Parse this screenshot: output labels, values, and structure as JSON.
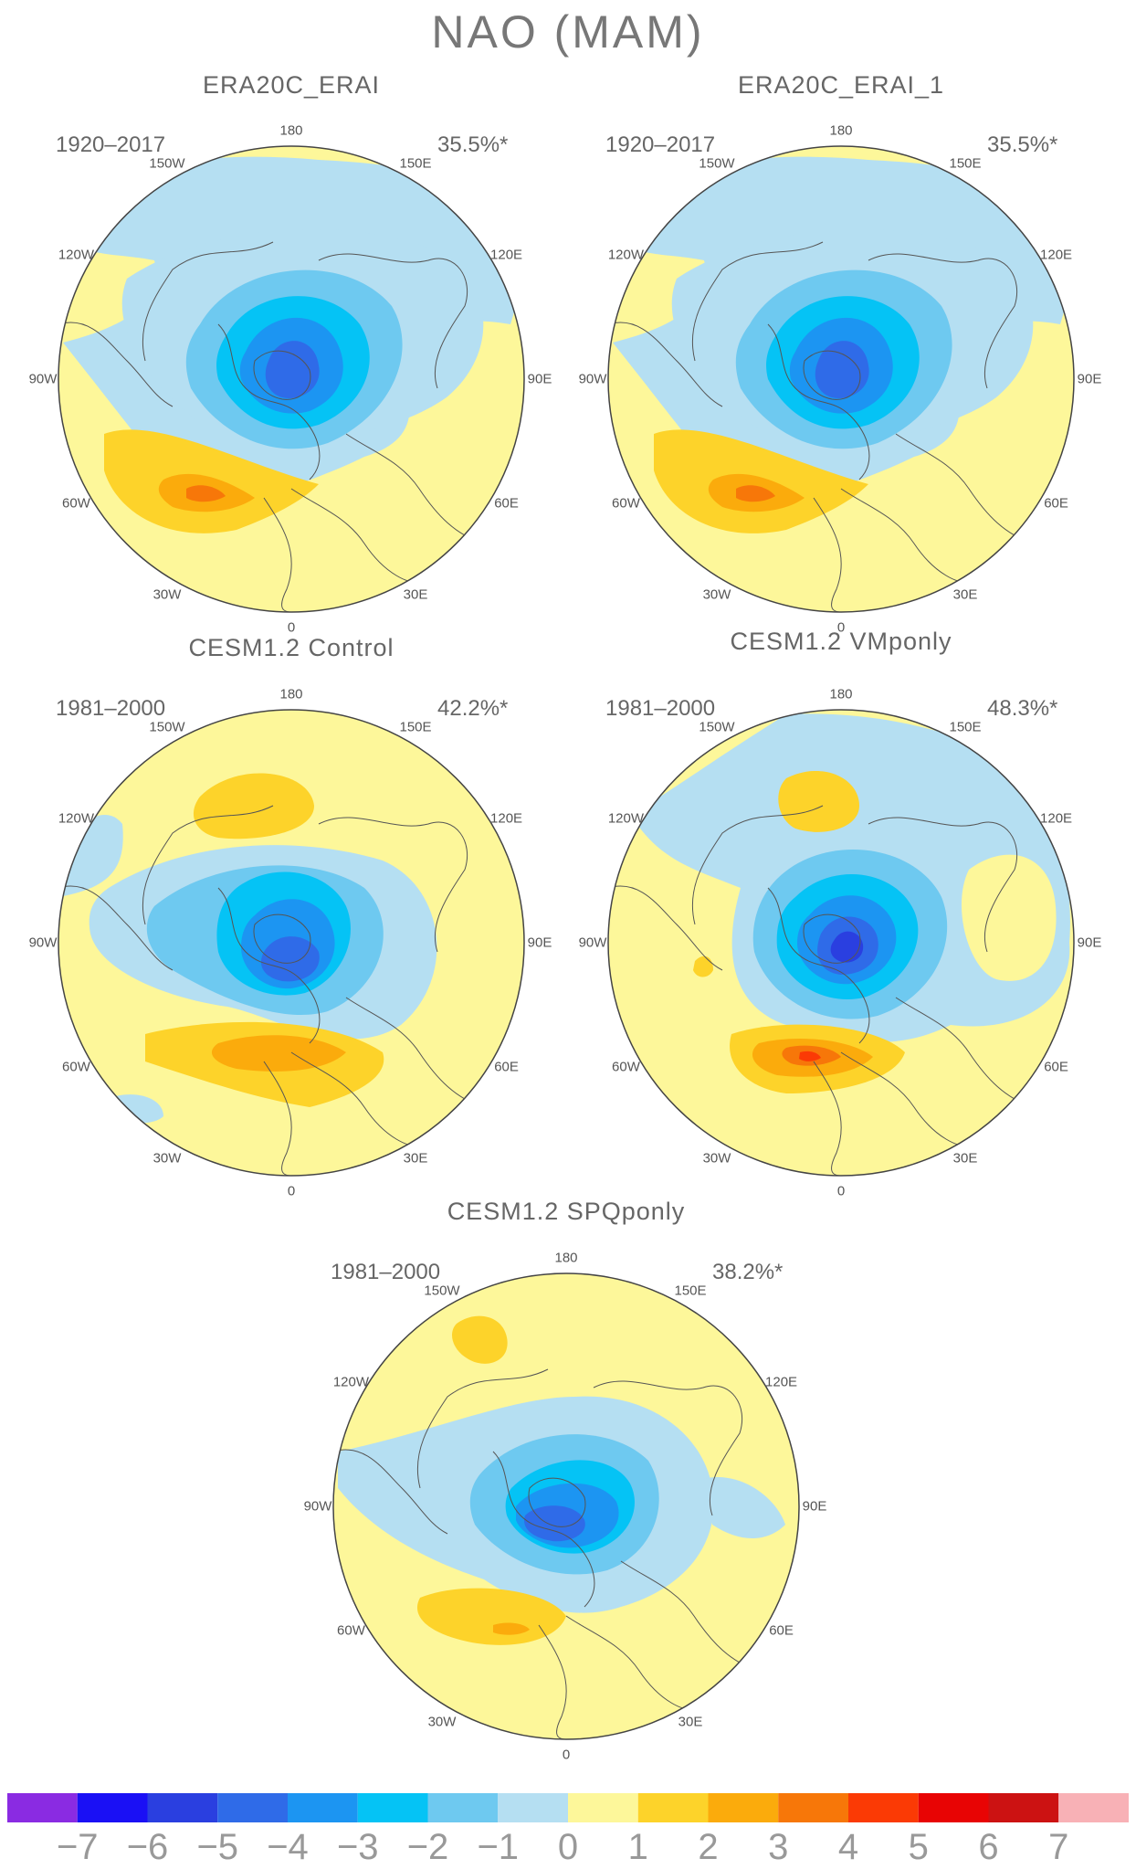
{
  "title": "NAO (MAM)",
  "panels": [
    {
      "title": "ERA20C_ERAI",
      "period": "1920–2017",
      "variance": "35.5%*"
    },
    {
      "title": "ERA20C_ERAI_1",
      "period": "1920–2017",
      "variance": "35.5%*"
    },
    {
      "title": "CESM1.2 Control",
      "period": "1981–2000",
      "variance": "42.2%*"
    },
    {
      "title": "CESM1.2 VMponly",
      "period": "1981–2000",
      "variance": "48.3%*"
    },
    {
      "title": "CESM1.2 SPQponly",
      "period": "1981–2000",
      "variance": "38.2%*"
    }
  ],
  "longitude_labels": [
    "180",
    "150E",
    "120E",
    "90E",
    "60E",
    "30E",
    "0",
    "30W",
    "60W",
    "90W",
    "120W",
    "150W"
  ],
  "colorbar": {
    "labels": [
      "−7",
      "−6",
      "−5",
      "−4",
      "−3",
      "−2",
      "−1",
      "0",
      "1",
      "2",
      "3",
      "4",
      "5",
      "6",
      "7"
    ],
    "colors": [
      "#8a2be2",
      "#1a10f5",
      "#2a3fe0",
      "#2f6be8",
      "#1c95f2",
      "#05c3f5",
      "#6ec9f0",
      "#b5dff2",
      "#fdf79a",
      "#fdd32a",
      "#fbab0c",
      "#f77709",
      "#fb3a05",
      "#e80404",
      "#cc1212",
      "#f8b1b6"
    ]
  }
}
